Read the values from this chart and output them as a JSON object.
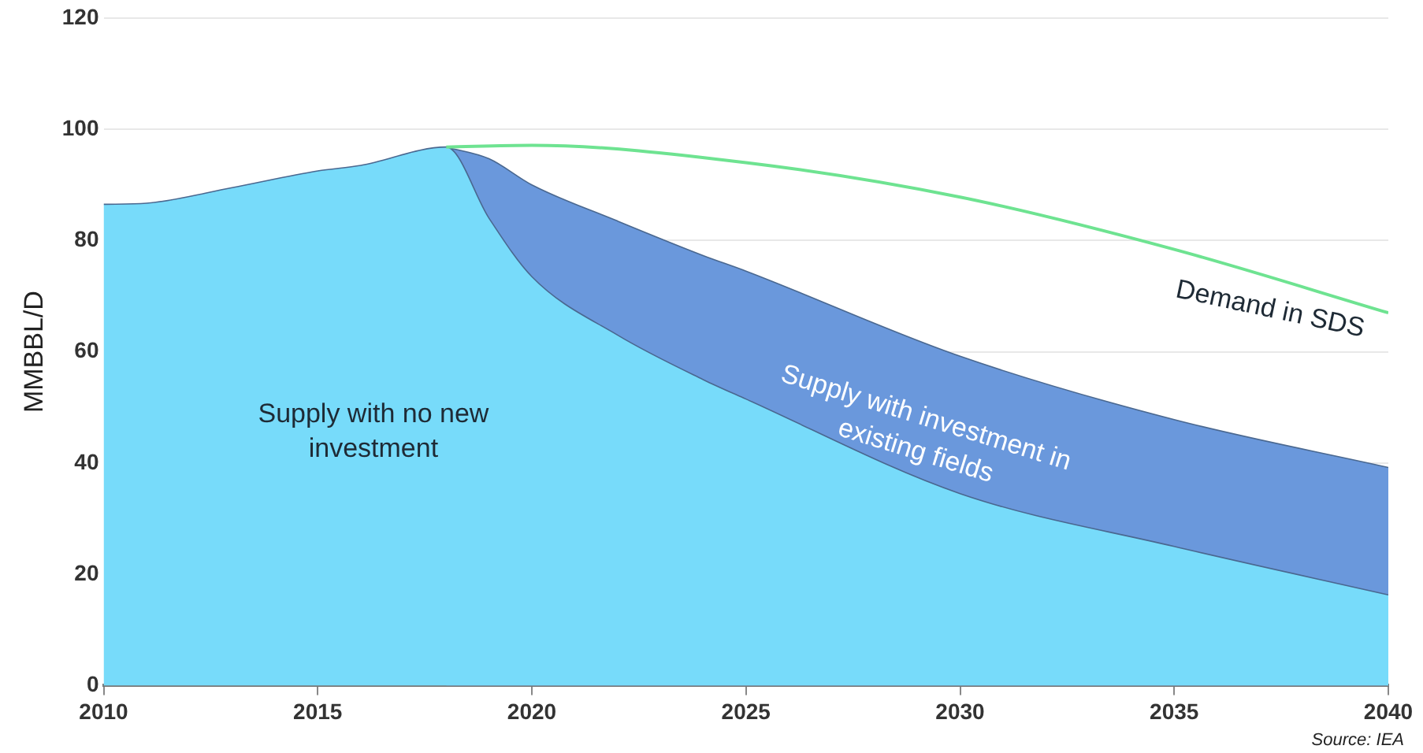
{
  "chart_data": {
    "type": "area",
    "ylabel": "MMBBL/D",
    "xlim": [
      2010,
      2040
    ],
    "xticks": [
      2010,
      2015,
      2020,
      2025,
      2030,
      2035,
      2040
    ],
    "ylim": [
      0,
      120
    ],
    "yticks": [
      0,
      20,
      40,
      60,
      80,
      100,
      120
    ],
    "grid": "y",
    "legend": false,
    "marker": "none",
    "series": [
      {
        "name": "Supply with investment in existing fields",
        "color": "#6a98dc",
        "x": [
          2018,
          2019,
          2020,
          2022,
          2024,
          2025,
          2030,
          2035,
          2040
        ],
        "values": [
          96.8,
          94.7,
          90,
          83.5,
          77.3,
          74.5,
          59.2,
          47.8,
          39.2
        ]
      },
      {
        "name": "Supply with no new investment",
        "color": "#77dbfa",
        "x": [
          2010,
          2011,
          2013,
          2015,
          2016,
          2018,
          2019,
          2020,
          2022,
          2024,
          2025,
          2030,
          2035,
          2040
        ],
        "values": [
          86.5,
          86.7,
          89.5,
          92.5,
          93.5,
          96.8,
          84,
          73.5,
          63,
          55,
          51.5,
          34.5,
          25,
          16.3
        ]
      },
      {
        "name": "Demand in SDS",
        "type": "line",
        "color": "#6ee391",
        "x": [
          2018,
          2020,
          2025,
          2030,
          2035,
          2040
        ],
        "values": [
          96.8,
          97.1,
          94,
          87.8,
          78.4,
          67
        ]
      }
    ],
    "annotations": [
      "Source: IEA"
    ]
  }
}
